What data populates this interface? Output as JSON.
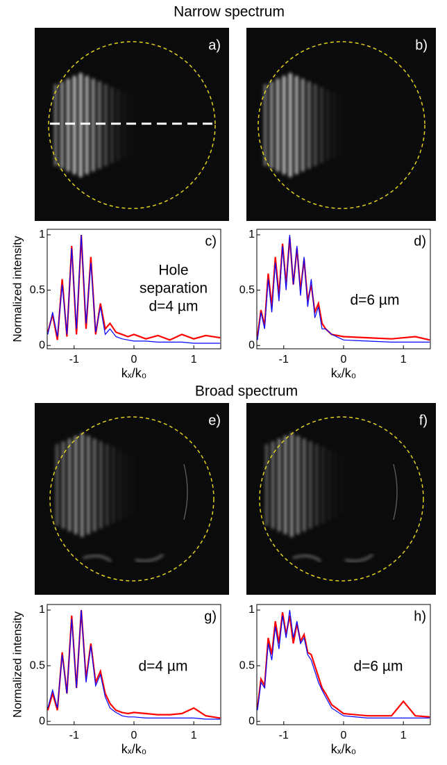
{
  "figure": {
    "headings": [
      "Narrow spectrum",
      "Broad spectrum"
    ],
    "images": [
      {
        "label": "a)"
      },
      {
        "label": "b)"
      },
      {
        "label": "e)"
      },
      {
        "label": "f)"
      }
    ]
  },
  "chart_data": [
    {
      "type": "line",
      "panel_label": "c)",
      "ylabel": "Normalized intensity",
      "xlabel": "kₓ/k₀",
      "annotations": [
        "Hole",
        "separation",
        "d=4 µm"
      ],
      "xlim": [
        -1.45,
        1.45
      ],
      "xticks": [
        -1,
        0,
        1
      ],
      "ylim": [
        -0.03,
        1.05
      ],
      "yticks": [
        0,
        0.5,
        1
      ],
      "x": [
        -1.44,
        -1.36,
        -1.28,
        -1.2,
        -1.12,
        -1.04,
        -0.96,
        -0.88,
        -0.8,
        -0.72,
        -0.64,
        -0.56,
        -0.48,
        -0.4,
        -0.3,
        -0.2,
        -0.1,
        0,
        0.2,
        0.4,
        0.6,
        0.8,
        1.0,
        1.2,
        1.44
      ],
      "series": [
        {
          "color": "#ff0000",
          "values": [
            0.12,
            0.28,
            0.05,
            0.6,
            0.08,
            0.9,
            0.1,
            1.0,
            0.15,
            0.8,
            0.1,
            0.38,
            0.15,
            0.2,
            0.12,
            0.1,
            0.08,
            0.1,
            0.06,
            0.09,
            0.05,
            0.1,
            0.06,
            0.09,
            0.07
          ]
        },
        {
          "color": "#0000ff",
          "values": [
            0.1,
            0.3,
            0.08,
            0.55,
            0.1,
            0.88,
            0.15,
            1.0,
            0.2,
            0.75,
            0.12,
            0.35,
            0.1,
            0.15,
            0.08,
            0.06,
            0.05,
            0.04,
            0.04,
            0.03,
            0.03,
            0.03,
            0.02,
            0.02,
            0.02
          ]
        }
      ]
    },
    {
      "type": "line",
      "panel_label": "d)",
      "annotations": [
        "d=6 µm"
      ],
      "xlabel": "kₓ/k₀",
      "xlim": [
        -1.45,
        1.45
      ],
      "xticks": [
        -1,
        0,
        1
      ],
      "ylim": [
        -0.03,
        1.05
      ],
      "yticks": [
        0,
        0.5,
        1
      ],
      "x": [
        -1.44,
        -1.38,
        -1.32,
        -1.26,
        -1.2,
        -1.14,
        -1.08,
        -1.02,
        -0.96,
        -0.9,
        -0.84,
        -0.78,
        -0.72,
        -0.66,
        -0.6,
        -0.54,
        -0.48,
        -0.42,
        -0.36,
        -0.3,
        -0.2,
        0,
        0.4,
        0.8,
        1.2,
        1.44
      ],
      "series": [
        {
          "color": "#ff0000",
          "values": [
            0.08,
            0.32,
            0.18,
            0.65,
            0.35,
            0.8,
            0.45,
            0.92,
            0.55,
            0.98,
            0.55,
            0.88,
            0.5,
            0.78,
            0.4,
            0.55,
            0.3,
            0.38,
            0.2,
            0.15,
            0.1,
            0.08,
            0.07,
            0.06,
            0.08,
            0.05
          ]
        },
        {
          "color": "#0000ff",
          "values": [
            0.05,
            0.3,
            0.15,
            0.6,
            0.3,
            0.75,
            0.4,
            0.9,
            0.5,
            1.0,
            0.55,
            0.9,
            0.45,
            0.8,
            0.35,
            0.6,
            0.25,
            0.35,
            0.15,
            0.15,
            0.1,
            0.05,
            0.04,
            0.03,
            0.03,
            0.03
          ]
        }
      ]
    },
    {
      "type": "line",
      "panel_label": "g)",
      "ylabel": "Normalized intensity",
      "xlabel": "kₓ/k₀",
      "annotations": [
        "d=4 µm"
      ],
      "xlim": [
        -1.45,
        1.45
      ],
      "xticks": [
        -1,
        0,
        1
      ],
      "ylim": [
        -0.03,
        1.05
      ],
      "yticks": [
        0,
        0.5,
        1
      ],
      "x": [
        -1.44,
        -1.36,
        -1.28,
        -1.2,
        -1.12,
        -1.04,
        -0.96,
        -0.88,
        -0.8,
        -0.72,
        -0.64,
        -0.56,
        -0.48,
        -0.4,
        -0.3,
        -0.2,
        -0.1,
        0,
        0.2,
        0.4,
        0.6,
        0.8,
        1.0,
        1.2,
        1.44
      ],
      "series": [
        {
          "color": "#ff0000",
          "values": [
            0.1,
            0.25,
            0.1,
            0.62,
            0.25,
            0.95,
            0.3,
            1.0,
            0.38,
            0.7,
            0.35,
            0.45,
            0.25,
            0.16,
            0.1,
            0.08,
            0.07,
            0.08,
            0.07,
            0.06,
            0.06,
            0.07,
            0.12,
            0.05,
            0.03
          ]
        },
        {
          "color": "#0000ff",
          "values": [
            0.12,
            0.28,
            0.12,
            0.6,
            0.25,
            0.92,
            0.3,
            1.0,
            0.35,
            0.68,
            0.32,
            0.42,
            0.22,
            0.12,
            0.08,
            0.05,
            0.04,
            0.04,
            0.03,
            0.03,
            0.03,
            0.03,
            0.03,
            0.02,
            0.02
          ]
        }
      ]
    },
    {
      "type": "line",
      "panel_label": "h)",
      "annotations": [
        "d=6 µm"
      ],
      "xlabel": "kₓ/k₀",
      "xlim": [
        -1.45,
        1.45
      ],
      "xticks": [
        -1,
        0,
        1
      ],
      "ylim": [
        -0.03,
        1.05
      ],
      "yticks": [
        0,
        0.5,
        1
      ],
      "x": [
        -1.44,
        -1.38,
        -1.32,
        -1.26,
        -1.2,
        -1.14,
        -1.08,
        -1.02,
        -0.96,
        -0.9,
        -0.84,
        -0.78,
        -0.72,
        -0.66,
        -0.6,
        -0.54,
        -0.48,
        -0.42,
        -0.36,
        -0.3,
        -0.2,
        0,
        0.4,
        0.8,
        1.0,
        1.2,
        1.44
      ],
      "series": [
        {
          "color": "#ff0000",
          "values": [
            0.12,
            0.38,
            0.32,
            0.75,
            0.6,
            0.9,
            0.7,
            0.98,
            0.78,
            0.95,
            0.7,
            0.88,
            0.72,
            0.78,
            0.62,
            0.6,
            0.5,
            0.4,
            0.3,
            0.25,
            0.15,
            0.07,
            0.05,
            0.05,
            0.18,
            0.05,
            0.04
          ]
        },
        {
          "color": "#0000ff",
          "values": [
            0.1,
            0.35,
            0.3,
            0.7,
            0.55,
            0.85,
            0.65,
            0.95,
            0.75,
            1.0,
            0.75,
            0.9,
            0.7,
            0.75,
            0.6,
            0.55,
            0.45,
            0.35,
            0.28,
            0.22,
            0.12,
            0.05,
            0.03,
            0.03,
            0.03,
            0.03,
            0.03
          ]
        }
      ]
    }
  ]
}
